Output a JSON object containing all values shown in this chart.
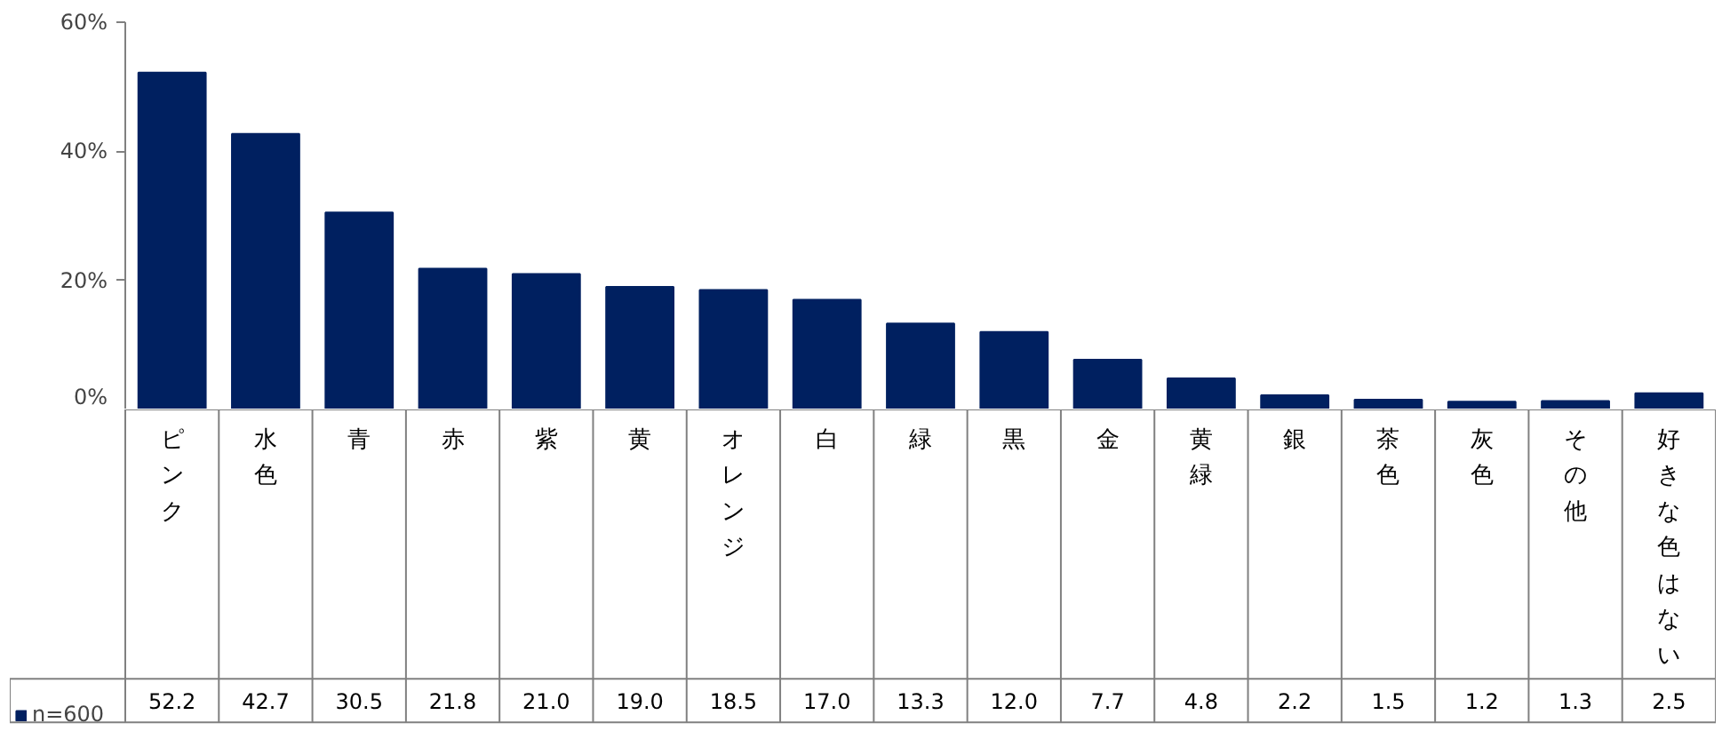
{
  "chart_data": {
    "type": "bar",
    "categories": [
      "ピンク",
      "水色",
      "青",
      "赤",
      "紫",
      "黄",
      "オレンジ",
      "白",
      "緑",
      "黒",
      "金",
      "黄緑",
      "銀",
      "茶色",
      "灰色",
      "その他",
      "好きな色はない"
    ],
    "series": [
      {
        "name": "n=600",
        "color": "#002060",
        "values": [
          52.2,
          42.7,
          30.5,
          21.8,
          21.0,
          19.0,
          18.5,
          17.0,
          13.3,
          12.0,
          7.7,
          4.8,
          2.2,
          1.5,
          1.2,
          1.3,
          2.5
        ],
        "value_labels": [
          "52.2",
          "42.7",
          "30.5",
          "21.8",
          "21.0",
          "19.0",
          "18.5",
          "17.0",
          "13.3",
          "12.0",
          "7.7",
          "4.8",
          "2.2",
          "1.5",
          "1.2",
          "1.3",
          "2.5"
        ]
      }
    ],
    "ylim": [
      0,
      60
    ],
    "yticks": [
      {
        "value": 0,
        "label": "0%"
      },
      {
        "value": 20,
        "label": "20%"
      },
      {
        "value": 40,
        "label": "40%"
      },
      {
        "value": 60,
        "label": "60%"
      }
    ],
    "grid": false,
    "legend": "bottom left"
  }
}
